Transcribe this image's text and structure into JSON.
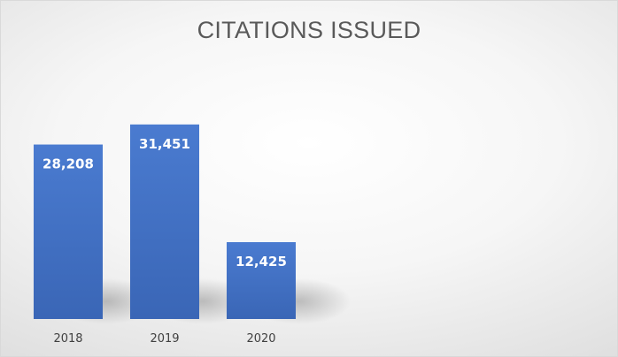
{
  "chart_data": {
    "type": "bar",
    "title": "CITATIONS ISSUED",
    "categories": [
      "2018",
      "2019",
      "2020"
    ],
    "values": [
      28208,
      31451,
      12425
    ],
    "value_labels": [
      "28,208",
      "31,451",
      "12,425"
    ],
    "xlabel": "",
    "ylabel": "",
    "ylim": [
      0,
      40000
    ],
    "grid": false,
    "legend": "none",
    "bar_color": "#4472c4"
  }
}
